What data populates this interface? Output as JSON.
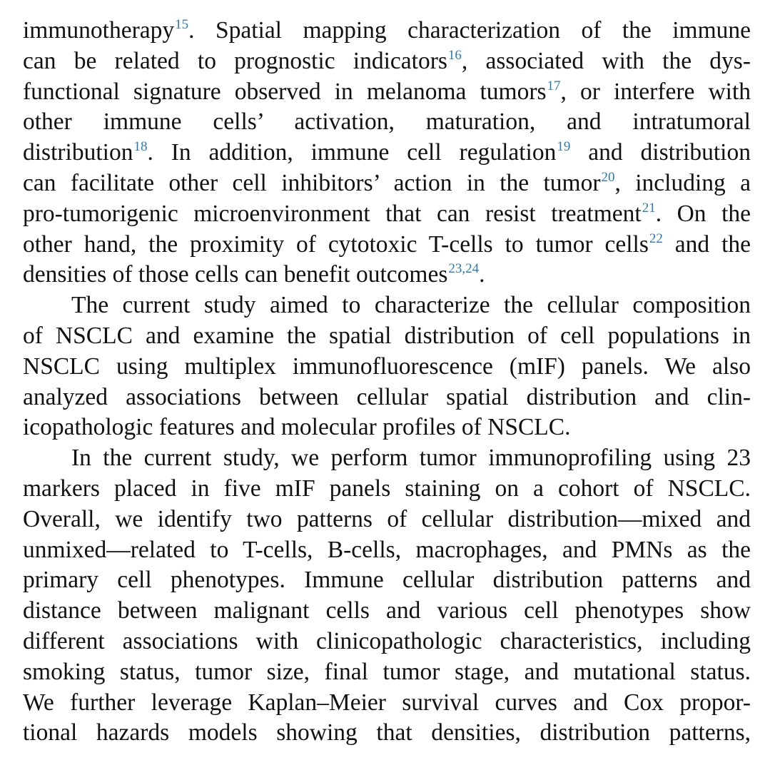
{
  "paragraphs": [
    {
      "indent": false,
      "lines": [
        [
          {
            "t": "immunotherapy"
          },
          {
            "r": "15"
          },
          {
            "t": ". Spatial mapping characterization of the immune"
          }
        ],
        [
          {
            "t": "can be related to prognostic indicators"
          },
          {
            "r": "16"
          },
          {
            "t": ", associated with the dys-"
          }
        ],
        [
          {
            "t": "functional signature observed in melanoma tumors"
          },
          {
            "r": "17"
          },
          {
            "t": ", or interfere with"
          }
        ],
        [
          {
            "t": "other immune cells’ activation, maturation, and intratumoral"
          }
        ],
        [
          {
            "t": "distribution"
          },
          {
            "r": "18"
          },
          {
            "t": ". In addition, immune cell regulation"
          },
          {
            "r": "19"
          },
          {
            "t": " and distribution"
          }
        ],
        [
          {
            "t": "can facilitate other cell inhibitors’ action in the tumor"
          },
          {
            "r": "20"
          },
          {
            "t": ", including a"
          }
        ],
        [
          {
            "t": "pro-tumorigenic microenvironment that can resist treatment"
          },
          {
            "r": "21"
          },
          {
            "t": ". On the"
          }
        ],
        [
          {
            "t": "other hand, the proximity of cytotoxic T-cells to tumor cells"
          },
          {
            "r": "22"
          },
          {
            "t": " and the"
          }
        ],
        [
          {
            "t": "densities of those cells can benefit outcomes"
          },
          {
            "r": "23,24"
          },
          {
            "t": "."
          }
        ]
      ]
    },
    {
      "indent": true,
      "lines": [
        [
          {
            "t": "The current study aimed to characterize the cellular composition"
          }
        ],
        [
          {
            "t": "of NSCLC and examine the spatial distribution of cell populations in"
          }
        ],
        [
          {
            "t": "NSCLC using multiplex immunofluorescence (mIF) panels. We also"
          }
        ],
        [
          {
            "t": "analyzed associations between cellular spatial distribution and clin-"
          }
        ],
        [
          {
            "t": "icopathologic features and molecular profiles of NSCLC."
          }
        ]
      ]
    },
    {
      "indent": true,
      "lines": [
        [
          {
            "t": "In the current study, we perform tumor immunoprofiling using 23"
          }
        ],
        [
          {
            "t": "markers placed in five mIF panels staining on a cohort of NSCLC."
          }
        ],
        [
          {
            "t": "Overall, we identify two patterns of cellular distribution—mixed and"
          }
        ],
        [
          {
            "t": "unmixed—related to T-cells, B-cells, macrophages, and PMNs as the"
          }
        ],
        [
          {
            "t": "primary cell phenotypes. Immune cellular distribution patterns and"
          }
        ],
        [
          {
            "t": "distance between malignant cells and various cell phenotypes show"
          }
        ],
        [
          {
            "t": "different associations with clinicopathologic characteristics, including"
          }
        ],
        [
          {
            "t": "smoking status, tumor size, final tumor stage, and mutational status."
          }
        ],
        [
          {
            "t": "We further leverage Kaplan–Meier survival curves and Cox propor-"
          }
        ],
        [
          {
            "t": "tional hazards models showing that densities, distribution patterns,"
          }
        ]
      ]
    }
  ],
  "colors": {
    "text": "#111111",
    "reference_link": "#2a7ab8",
    "background": "#ffffff"
  }
}
